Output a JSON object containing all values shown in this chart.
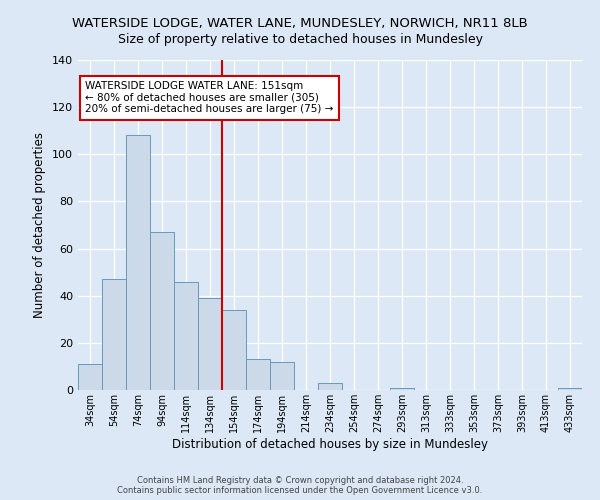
{
  "title": "WATERSIDE LODGE, WATER LANE, MUNDESLEY, NORWICH, NR11 8LB",
  "subtitle": "Size of property relative to detached houses in Mundesley",
  "xlabel": "Distribution of detached houses by size in Mundesley",
  "ylabel": "Number of detached properties",
  "bar_labels": [
    "34sqm",
    "54sqm",
    "74sqm",
    "94sqm",
    "114sqm",
    "134sqm",
    "154sqm",
    "174sqm",
    "194sqm",
    "214sqm",
    "234sqm",
    "254sqm",
    "274sqm",
    "293sqm",
    "313sqm",
    "333sqm",
    "353sqm",
    "373sqm",
    "393sqm",
    "413sqm",
    "433sqm"
  ],
  "bar_values": [
    11,
    47,
    108,
    67,
    46,
    39,
    34,
    13,
    12,
    0,
    3,
    0,
    0,
    1,
    0,
    0,
    0,
    0,
    0,
    0,
    1
  ],
  "bar_color": "#ccd9e8",
  "bar_edgecolor": "#6699bb",
  "ylim": [
    0,
    140
  ],
  "yticks": [
    0,
    20,
    40,
    60,
    80,
    100,
    120,
    140
  ],
  "vline_x": 6,
  "vline_color": "#cc0000",
  "annotation_title": "WATERSIDE LODGE WATER LANE: 151sqm",
  "annotation_line1": "← 80% of detached houses are smaller (305)",
  "annotation_line2": "20% of semi-detached houses are larger (75) →",
  "footer1": "Contains HM Land Registry data © Crown copyright and database right 2024.",
  "footer2": "Contains public sector information licensed under the Open Government Licence v3.0.",
  "background_color": "#dce8f5",
  "plot_background": "#dce8f5",
  "grid_color": "#ffffff",
  "title_fontsize": 9.5,
  "subtitle_fontsize": 9.0,
  "bar_width": 1.0
}
